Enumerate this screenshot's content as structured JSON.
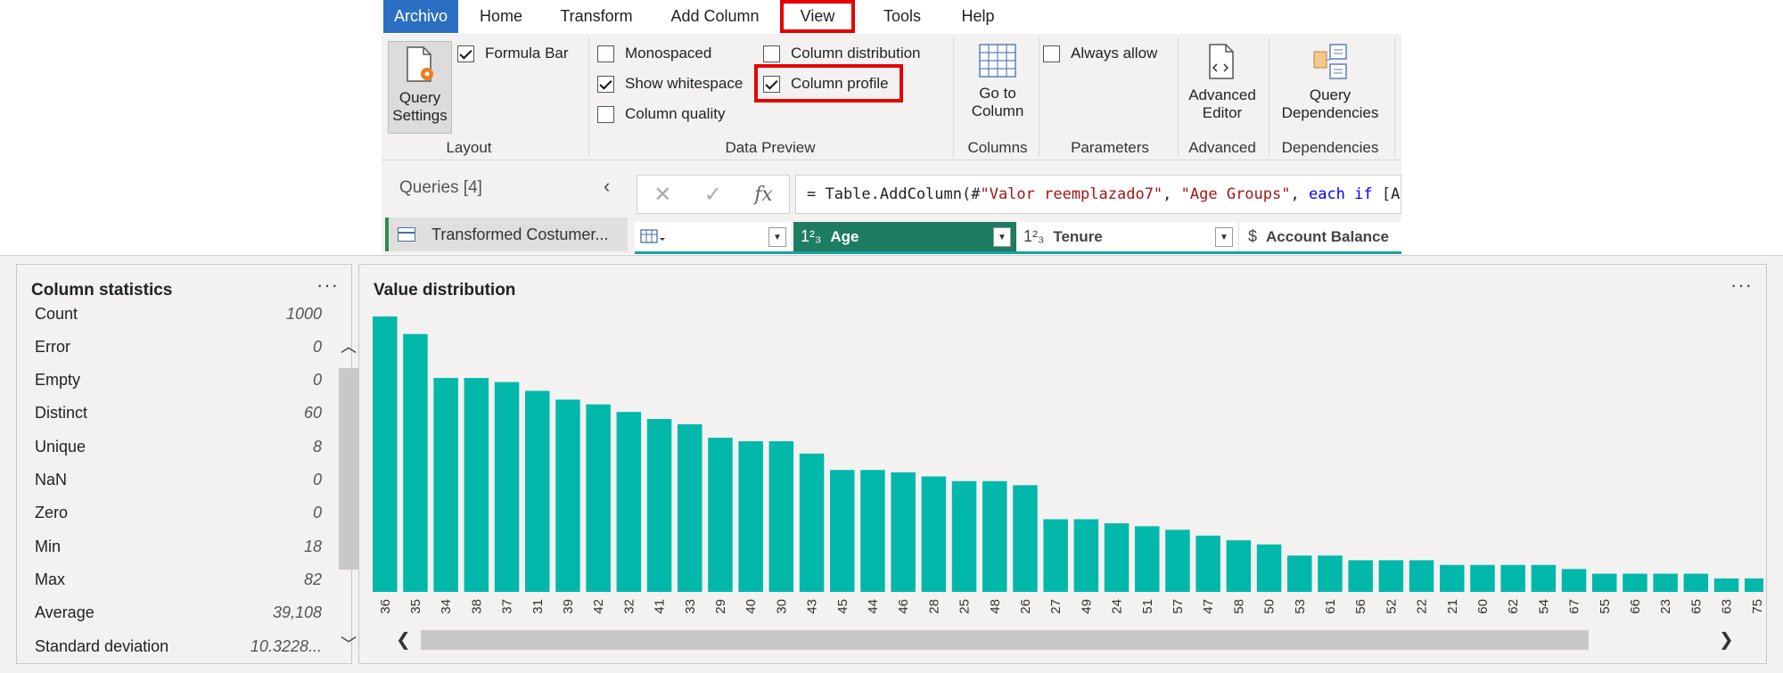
{
  "ribbon": {
    "tabs": [
      "Archivo",
      "Home",
      "Transform",
      "Add Column",
      "View",
      "Tools",
      "Help"
    ],
    "layout": {
      "query_settings": [
        "Query",
        "Settings"
      ],
      "formula_bar": {
        "label": "Formula Bar",
        "checked": true
      },
      "group": "Layout"
    },
    "data_preview": {
      "monospaced": {
        "label": "Monospaced",
        "checked": false
      },
      "show_whitespace": {
        "label": "Show whitespace",
        "checked": true
      },
      "column_quality": {
        "label": "Column quality",
        "checked": false
      },
      "column_distribution": {
        "label": "Column distribution",
        "checked": false
      },
      "column_profile": {
        "label": "Column profile",
        "checked": true
      },
      "group": "Data Preview"
    },
    "columns": {
      "go_to_column": [
        "Go to",
        "Column"
      ],
      "group": "Columns"
    },
    "parameters": {
      "always_allow": {
        "label": "Always allow",
        "checked": false
      },
      "group": "Parameters"
    },
    "advanced": {
      "editor": [
        "Advanced",
        "Editor"
      ],
      "group": "Advanced"
    },
    "dependencies": {
      "query_deps": [
        "Query",
        "Dependencies"
      ],
      "group": "Dependencies"
    }
  },
  "queries": {
    "title": "Queries [4]",
    "items": [
      "Transformed Costumer..."
    ]
  },
  "formula": {
    "parts": [
      {
        "t": "= Table.AddColumn(#",
        "c": "plain"
      },
      {
        "t": "\"Valor reemplazado7\"",
        "c": "str"
      },
      {
        "t": ", ",
        "c": "plain"
      },
      {
        "t": "\"Age Groups\"",
        "c": "str"
      },
      {
        "t": ", ",
        "c": "plain"
      },
      {
        "t": "each",
        "c": "kw"
      },
      {
        "t": " ",
        "c": "plain"
      },
      {
        "t": "if",
        "c": "kw"
      },
      {
        "t": " [A",
        "c": "plain"
      }
    ]
  },
  "columns_header": [
    {
      "type": "",
      "name": ""
    },
    {
      "type": "1²₃",
      "name": "Age"
    },
    {
      "type": "1²₃",
      "name": "Tenure"
    },
    {
      "type": "$",
      "name": "Account Balance"
    }
  ],
  "stats": {
    "title": "Column statistics",
    "rows": [
      {
        "k": "Count",
        "v": "1000"
      },
      {
        "k": "Error",
        "v": "0"
      },
      {
        "k": "Empty",
        "v": "0"
      },
      {
        "k": "Distinct",
        "v": "60"
      },
      {
        "k": "Unique",
        "v": "8"
      },
      {
        "k": "NaN",
        "v": "0"
      },
      {
        "k": "Zero",
        "v": "0"
      },
      {
        "k": "Min",
        "v": "18"
      },
      {
        "k": "Max",
        "v": "82"
      },
      {
        "k": "Average",
        "v": "39,108"
      },
      {
        "k": "Standard deviation",
        "v": "10.3228..."
      }
    ]
  },
  "distribution": {
    "title": "Value distribution",
    "more": "···"
  },
  "colors": {
    "bar": "#01b8aa",
    "accent": "#1e7c62",
    "file_tab": "#2b6fc2",
    "highlight": "#e60000"
  },
  "chart_data": {
    "type": "bar",
    "title": "Value distribution",
    "categories": [
      "36",
      "35",
      "34",
      "38",
      "37",
      "31",
      "39",
      "42",
      "32",
      "41",
      "33",
      "29",
      "40",
      "30",
      "43",
      "45",
      "44",
      "46",
      "28",
      "25",
      "48",
      "26",
      "27",
      "49",
      "24",
      "51",
      "57",
      "47",
      "58",
      "50",
      "53",
      "61",
      "56",
      "52",
      "22",
      "21",
      "60",
      "62",
      "54",
      "67",
      "55",
      "66",
      "23",
      "65",
      "63",
      "75"
    ],
    "values": [
      47,
      44,
      36.5,
      36.5,
      35.8,
      34.3,
      32.8,
      32,
      30.7,
      29.5,
      28.6,
      26.3,
      25.7,
      25.7,
      23.6,
      20.8,
      20.8,
      20.4,
      19.7,
      18.9,
      18.9,
      18.2,
      12.4,
      12.4,
      11.7,
      11.2,
      10.6,
      9.6,
      8.8,
      8.1,
      6.2,
      6.2,
      5.4,
      5.4,
      5.4,
      4.6,
      4.6,
      4.6,
      4.6,
      3.9,
      3.1,
      3.1,
      3.1,
      3.1,
      2.3,
      2.3
    ]
  }
}
